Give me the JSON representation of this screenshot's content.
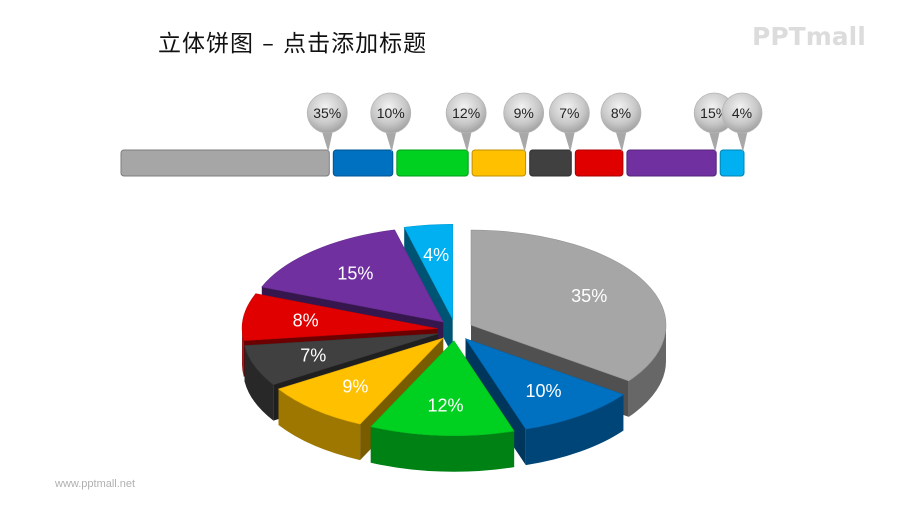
{
  "slide": {
    "title": "立体饼图 – 点击添加标题",
    "logo": "PPTmall",
    "footer": "www.pptmall.net"
  },
  "chart_data": {
    "type": "pie",
    "style": "3d-exploded",
    "categories": [
      "Gray",
      "Blue",
      "Green",
      "Yellow",
      "Dark gray",
      "Red",
      "Purple",
      "Light blue"
    ],
    "values": [
      35,
      10,
      12,
      9,
      7,
      8,
      15,
      4
    ],
    "labels": [
      "35%",
      "10%",
      "12%",
      "9%",
      "7%",
      "8%",
      "15%",
      "4%"
    ],
    "colors": [
      "#a6a6a6",
      "#0070c0",
      "#00d020",
      "#ffc000",
      "#404040",
      "#e00000",
      "#7030a0",
      "#00b0f0"
    ],
    "legend_bar": "top",
    "units": "%"
  }
}
